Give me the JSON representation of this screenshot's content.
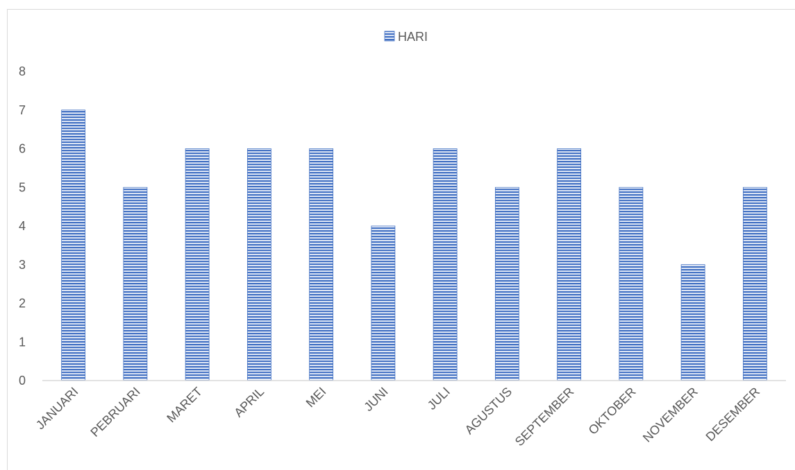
{
  "chart_data": {
    "type": "bar",
    "categories": [
      "JANUARI",
      "PEBRUARI",
      "MARET",
      "APRIL",
      "MEI",
      "JUNI",
      "JULI",
      "AGUSTUS",
      "SEPTEMBER",
      "OKTOBER",
      "NOVEMBER",
      "DESEMBER"
    ],
    "series": [
      {
        "name": "HARI",
        "values": [
          7,
          5,
          6,
          6,
          6,
          4,
          6,
          5,
          6,
          5,
          3,
          5
        ],
        "color": "#4472c4"
      }
    ],
    "ylim": [
      0,
      8
    ],
    "yticks": [
      0,
      1,
      2,
      3,
      4,
      5,
      6,
      7,
      8
    ],
    "grid": false,
    "legend_position": "top",
    "bar_pattern": "horizontal-stripes"
  }
}
